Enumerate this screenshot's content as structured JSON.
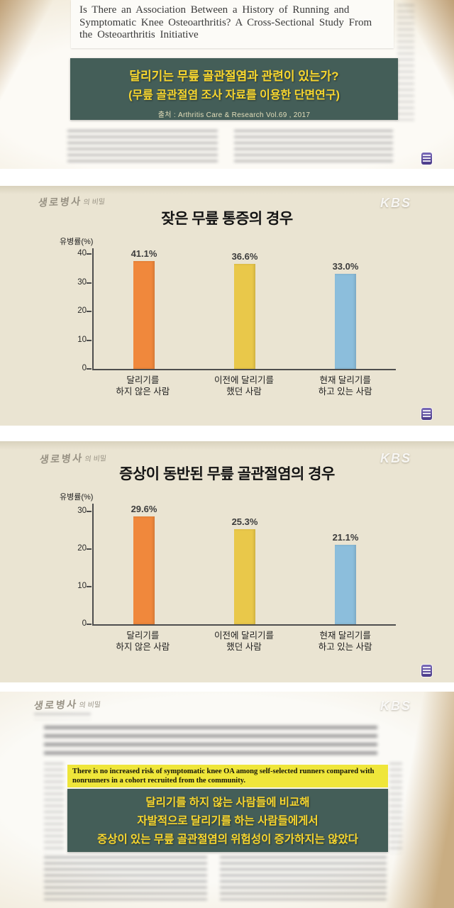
{
  "global": {
    "kbs": "KBS",
    "logo_main": "생로병사",
    "logo_sub": "의 비밀"
  },
  "panel1": {
    "paper_title": "Is There an Association Between a History of Running and Symptomatic Knee Osteoarthritis? A Cross-Sectional Study From the Osteoarthritis Initiative",
    "title_line1": "달리기는 무릎 골관절염과 관련이 있는가?",
    "title_line2": "(무릎 골관절염 조사 자료를 이용한 단면연구)",
    "source": "출처 : Arthritis Care & Research Vol.69 , 2017"
  },
  "chart_data": [
    {
      "type": "bar",
      "title": "잦은 무릎 통증의 경우",
      "ylabel": "유병률(%)",
      "ylim": [
        0,
        42
      ],
      "yticks": [
        0,
        10,
        20,
        30,
        40
      ],
      "categories": [
        [
          "달리기를",
          "하지 않은 사람"
        ],
        [
          "이전에 달리기를",
          "했던 사람"
        ],
        [
          "현재 달리기를",
          "하고 있는 사람"
        ]
      ],
      "values": [
        41.1,
        36.6,
        33.0
      ],
      "value_labels": [
        "41.1%",
        "36.6%",
        "33.0%"
      ],
      "colors": [
        "#f0883c",
        "#e9c84a",
        "#8cbedc"
      ],
      "grid": false,
      "legend_position": "none"
    },
    {
      "type": "bar",
      "title": "증상이 동반된 무릎 골관절염의 경우",
      "ylabel": "유병률(%)",
      "ylim": [
        0,
        32
      ],
      "yticks": [
        0,
        10,
        20,
        30
      ],
      "categories": [
        [
          "달리기를",
          "하지 않은 사람"
        ],
        [
          "이전에 달리기를",
          "했던 사람"
        ],
        [
          "현재 달리기를",
          "하고 있는 사람"
        ]
      ],
      "values": [
        29.6,
        25.3,
        21.1
      ],
      "value_labels": [
        "29.6%",
        "25.3%",
        "21.1%"
      ],
      "colors": [
        "#f0883c",
        "#e9c84a",
        "#8cbedc"
      ],
      "grid": false,
      "legend_position": "none"
    }
  ],
  "panel4": {
    "highlight": "There is no increased risk of symptomatic knee OA among self-selected runners compared with nonrunners in a cohort recruited from the community.",
    "conclusion": [
      "달리기를 하지 않는 사람들에 비교해",
      "자발적으로 달리기를 하는 사람들에게서",
      "증상이 있는 무릎 골관절염의 위험성이 증가하지는 않았다"
    ]
  }
}
